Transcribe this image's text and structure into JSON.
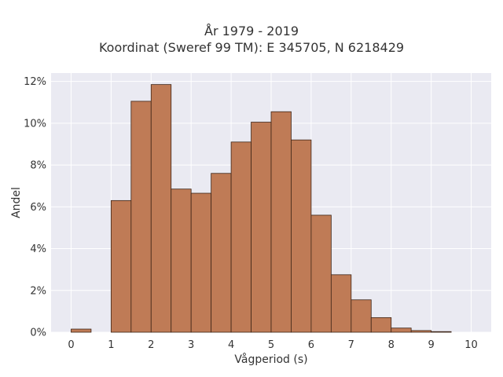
{
  "chart_data": {
    "type": "bar",
    "title_line1": "År 1979 - 2019",
    "title_line2": "Koordinat (Sweref 99 TM): E 345705, N 6218429",
    "xlabel": "Vågperiod (s)",
    "ylabel": "Andel",
    "xlim": [
      -0.5,
      10.5
    ],
    "ylim": [
      0,
      12.4
    ],
    "xticks": [
      "0",
      "1",
      "2",
      "3",
      "4",
      "5",
      "6",
      "7",
      "8",
      "9",
      "10"
    ],
    "yticks": [
      "0%",
      "2%",
      "4%",
      "6%",
      "8%",
      "10%",
      "12%"
    ],
    "bin_width": 0.5,
    "bins": [
      {
        "start": 0.0,
        "value": 0.15
      },
      {
        "start": 0.5,
        "value": 0.0
      },
      {
        "start": 1.0,
        "value": 6.3
      },
      {
        "start": 1.5,
        "value": 11.05
      },
      {
        "start": 2.0,
        "value": 11.85
      },
      {
        "start": 2.5,
        "value": 6.85
      },
      {
        "start": 3.0,
        "value": 6.65
      },
      {
        "start": 3.5,
        "value": 7.6
      },
      {
        "start": 4.0,
        "value": 9.1
      },
      {
        "start": 4.5,
        "value": 10.05
      },
      {
        "start": 5.0,
        "value": 10.55
      },
      {
        "start": 5.5,
        "value": 9.2
      },
      {
        "start": 6.0,
        "value": 5.6
      },
      {
        "start": 6.5,
        "value": 2.75
      },
      {
        "start": 7.0,
        "value": 1.55
      },
      {
        "start": 7.5,
        "value": 0.7
      },
      {
        "start": 8.0,
        "value": 0.2
      },
      {
        "start": 8.5,
        "value": 0.08
      },
      {
        "start": 9.0,
        "value": 0.03
      }
    ],
    "bar_color": "#bf7b56",
    "bar_edge_color": "#3d2517",
    "background_color": "#eaeaf2",
    "grid": true
  }
}
